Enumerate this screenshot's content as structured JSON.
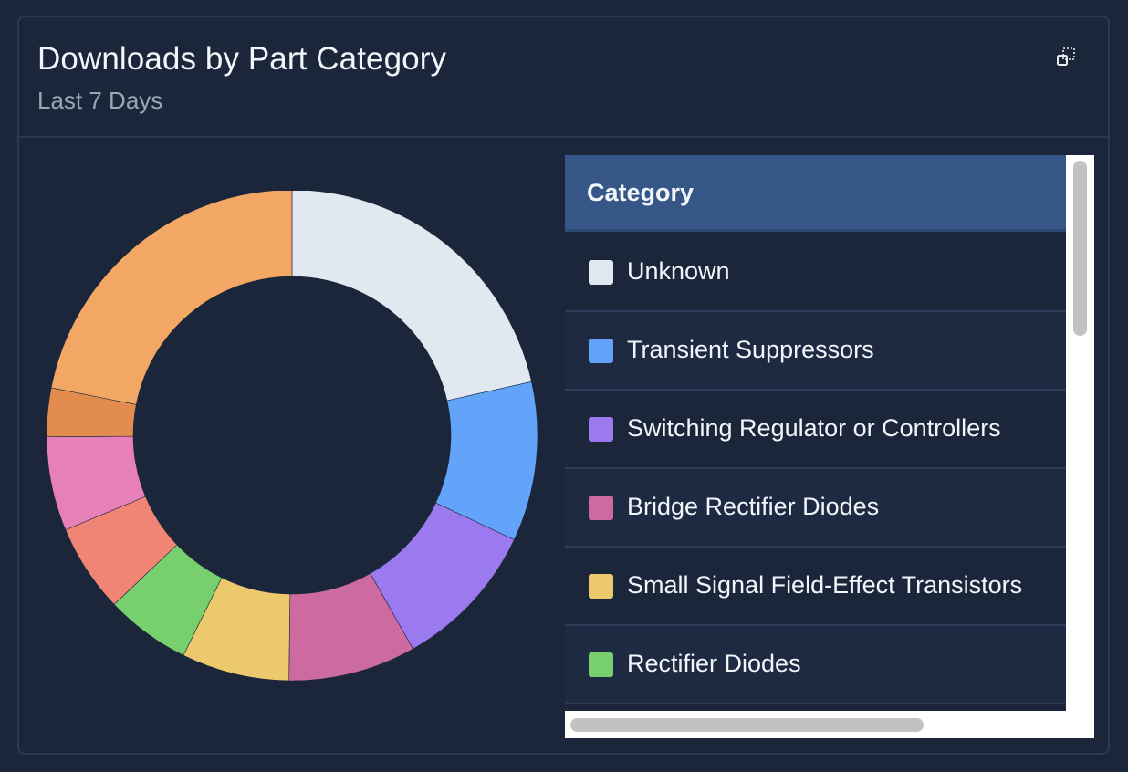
{
  "header": {
    "title": "Downloads by Part Category",
    "subtitle": "Last 7 Days",
    "expand_icon": "expand-icon"
  },
  "table": {
    "column_header": "Category",
    "rows": [
      {
        "label": "Unknown",
        "color": "#e2e8f0"
      },
      {
        "label": "Transient Suppressors",
        "color": "#63a4fa"
      },
      {
        "label": "Switching Regulator or Controllers",
        "color": "#9b7aef"
      },
      {
        "label": "Bridge Rectifier Diodes",
        "color": "#cd6aa0"
      },
      {
        "label": "Small Signal Field-Effect Transistors",
        "color": "#edc96d"
      },
      {
        "label": "Rectifier Diodes",
        "color": "#78cf6e"
      }
    ]
  },
  "chart_data": {
    "type": "pie",
    "donut": true,
    "title": "Downloads by Part Category",
    "subtitle": "Last 7 Days",
    "legend_placement": "right",
    "slices": [
      {
        "label": "Unknown",
        "value": 21.5,
        "color": "#e2e8f0"
      },
      {
        "label": "Transient Suppressors",
        "value": 10.5,
        "color": "#63a4fa"
      },
      {
        "label": "Switching Regulator or Controllers",
        "value": 9.8,
        "color": "#9b7aef"
      },
      {
        "label": "Bridge Rectifier Diodes",
        "value": 8.4,
        "color": "#cd6aa0"
      },
      {
        "label": "Small Signal Field-Effect Transistors",
        "value": 7.1,
        "color": "#edc96d"
      },
      {
        "label": "Rectifier Diodes",
        "value": 5.6,
        "color": "#78cf6e"
      },
      {
        "label": "",
        "value": 5.8,
        "color": "#f08576"
      },
      {
        "label": "",
        "value": 6.2,
        "color": "#e780b8"
      },
      {
        "label": "",
        "value": 3.2,
        "color": "#e38c50"
      },
      {
        "label": "",
        "value": 21.9,
        "color": "#f2a864"
      }
    ]
  }
}
